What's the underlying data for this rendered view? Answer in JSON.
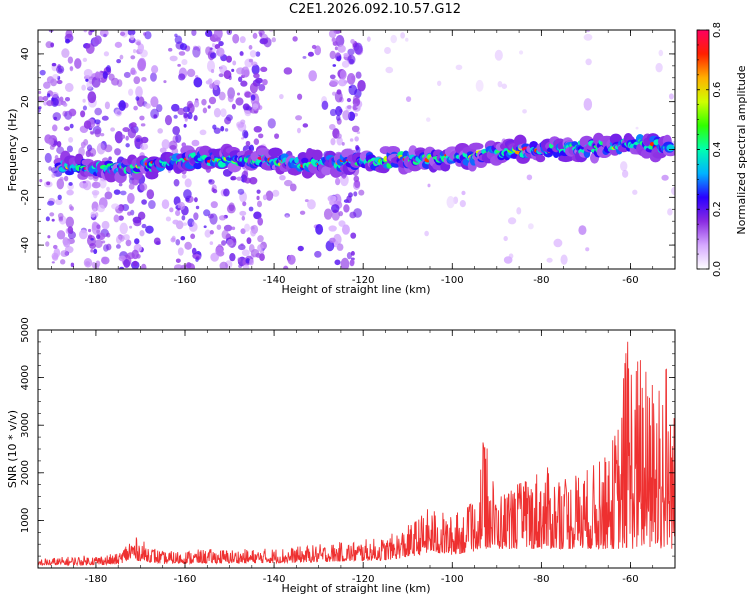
{
  "title": "C2E1.2026.092.10.57.G12",
  "chart_data": [
    {
      "type": "heatmap",
      "name": "spectrogram",
      "xlabel": "Height of straight line (km)",
      "ylabel": "Frequency (Hz)",
      "xlim": [
        -193,
        -50
      ],
      "ylim": [
        -50,
        50
      ],
      "xticks": [
        -180,
        -160,
        -140,
        -120,
        -100,
        -80,
        -60
      ],
      "xtick_labels": [
        "-180",
        "-160",
        "-140",
        "-120",
        "-100",
        "-80",
        "-60"
      ],
      "yticks": [
        -40,
        -20,
        0,
        20,
        40
      ],
      "ytick_labels": [
        "-40",
        "-20",
        "0",
        "20",
        "40"
      ],
      "ridge": {
        "description": "Dominant Doppler ridge frequency vs height",
        "x": [
          -190,
          -180,
          -170,
          -160,
          -150,
          -140,
          -130,
          -120,
          -110,
          -100,
          -90,
          -80,
          -70,
          -60,
          -52
        ],
        "y": [
          -7,
          -8,
          -7,
          -4,
          -4,
          -5,
          -6,
          -5,
          -4,
          -3,
          -1,
          0,
          1,
          2,
          1
        ]
      },
      "colorbar": {
        "label": "Normalized spectral amplitude",
        "range": [
          0.0,
          0.8
        ],
        "ticks": [
          0.0,
          0.2,
          0.4,
          0.6,
          0.8
        ],
        "tick_labels": [
          "0.0",
          "0.2",
          "0.4",
          "0.6",
          "0.8"
        ],
        "colors": [
          "#ffffff",
          "#d5a8ff",
          "#8a2be2",
          "#2a00ff",
          "#00b3ff",
          "#00ffb0",
          "#30ff00",
          "#d0ff00",
          "#ffb000",
          "#ff2000",
          "#ff0060"
        ]
      }
    },
    {
      "type": "line",
      "name": "snr",
      "xlabel": "Height of straight line (km)",
      "ylabel": "SNR (10 * v/v)",
      "xlim": [
        -193,
        -50
      ],
      "ylim": [
        0,
        5000
      ],
      "xticks": [
        -180,
        -160,
        -140,
        -120,
        -100,
        -80,
        -60
      ],
      "xtick_labels": [
        "-180",
        "-160",
        "-140",
        "-120",
        "-100",
        "-80",
        "-60"
      ],
      "yticks": [
        1000,
        2000,
        3000,
        4000,
        5000
      ],
      "ytick_labels": [
        "1000",
        "2000",
        "3000",
        "4000",
        "5000"
      ],
      "color": "#ee3030",
      "series_envelope": {
        "x": [
          -193,
          -185,
          -175,
          -172,
          -165,
          -155,
          -145,
          -135,
          -125,
          -115,
          -110,
          -105,
          -100,
          -95,
          -93,
          -90,
          -85,
          -80,
          -75,
          -70,
          -65,
          -62,
          -61,
          -58,
          -55,
          -52,
          -50
        ],
        "y": [
          200,
          250,
          300,
          700,
          350,
          400,
          400,
          450,
          550,
          650,
          900,
          1300,
          1100,
          1400,
          2850,
          1600,
          1800,
          2200,
          1900,
          2100,
          2400,
          3500,
          5000,
          4500,
          4000,
          4700,
          3200
        ]
      }
    }
  ]
}
